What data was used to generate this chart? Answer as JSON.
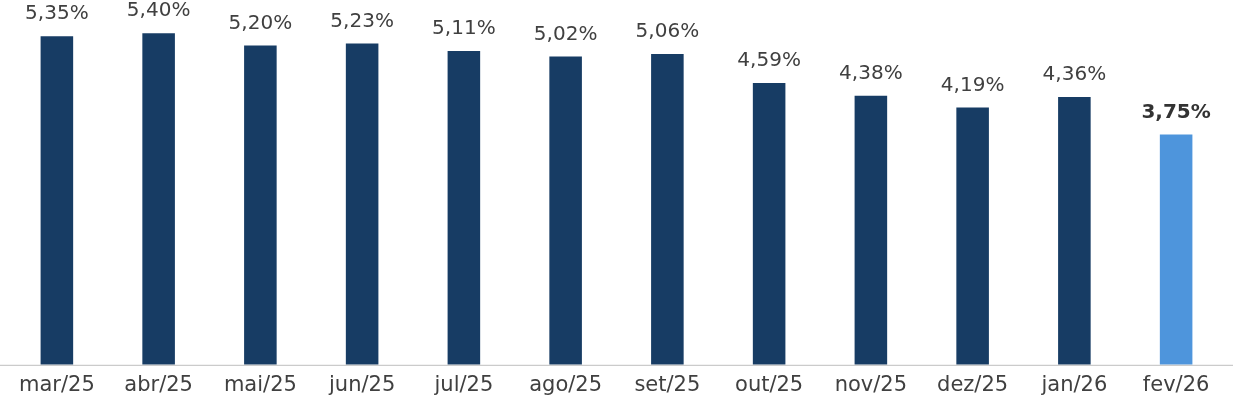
{
  "chart_data": {
    "type": "bar",
    "categories": [
      "mar/25",
      "abr/25",
      "mai/25",
      "jun/25",
      "jul/25",
      "ago/25",
      "set/25",
      "out/25",
      "nov/25",
      "dez/25",
      "jan/26",
      "fev/26"
    ],
    "values": [
      5.35,
      5.4,
      5.2,
      5.23,
      5.11,
      5.02,
      5.06,
      4.59,
      4.38,
      4.19,
      4.36,
      3.75
    ],
    "colors": [
      "#173c64",
      "#173c64",
      "#173c64",
      "#173c64",
      "#173c64",
      "#173c64",
      "#173c64",
      "#173c64",
      "#173c64",
      "#173c64",
      "#173c64",
      "#4e95dc"
    ],
    "value_labels": [
      "5,35%",
      "5,40%",
      "5,20%",
      "5,23%",
      "5,11%",
      "5,02%",
      "5,06%",
      "4,59%",
      "4,38%",
      "4,19%",
      "4,36%",
      "3,75%"
    ],
    "grid": false,
    "legend": false
  }
}
